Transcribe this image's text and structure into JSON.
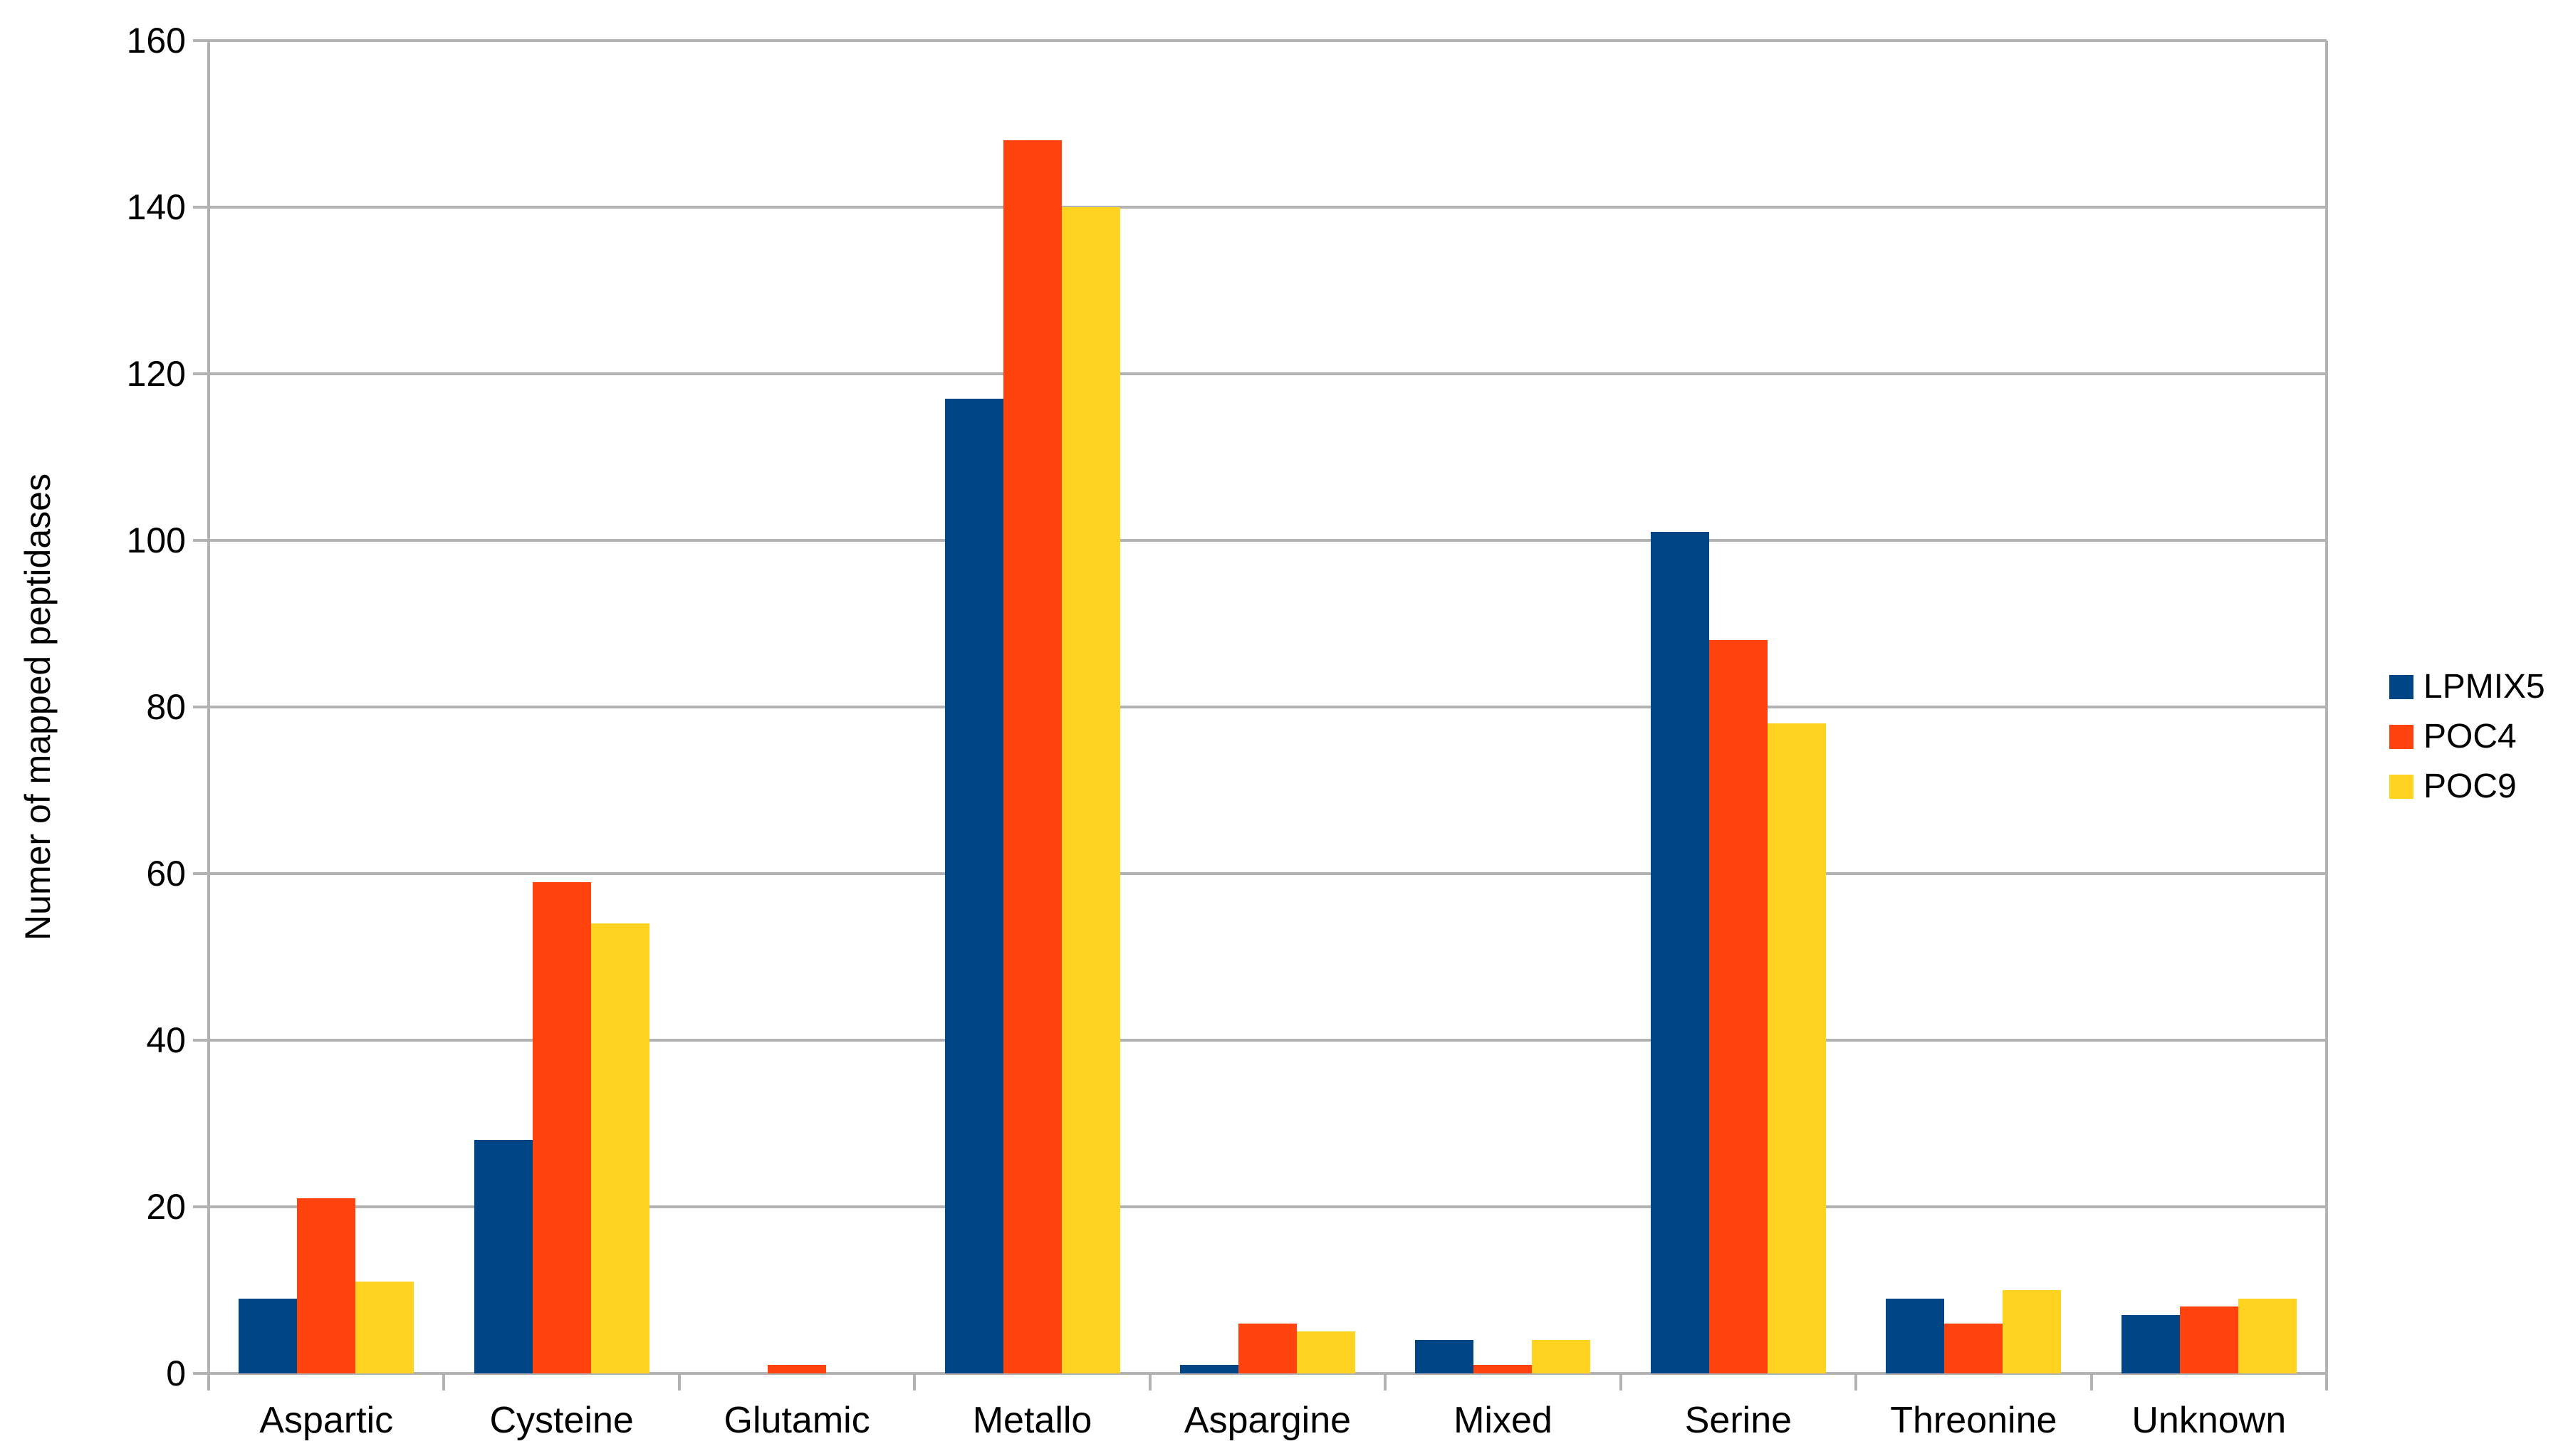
{
  "chart_data": {
    "type": "bar",
    "title": "",
    "xlabel": "",
    "ylabel": "Numer of mapped peptidases",
    "categories": [
      "Aspartic",
      "Cysteine",
      "Glutamic",
      "Metallo",
      "Aspargine",
      "Mixed",
      "Serine",
      "Threonine",
      "Unknown"
    ],
    "series": [
      {
        "name": "LPMIX5",
        "color": "#004586",
        "values": [
          9,
          28,
          0,
          117,
          1,
          4,
          101,
          9,
          7
        ]
      },
      {
        "name": "POC4",
        "color": "#FF420E",
        "values": [
          21,
          59,
          1,
          148,
          6,
          1,
          88,
          6,
          8
        ]
      },
      {
        "name": "POC9",
        "color": "#FFD320",
        "values": [
          11,
          54,
          0,
          140,
          5,
          4,
          78,
          10,
          9
        ]
      }
    ],
    "ylim": [
      0,
      160
    ],
    "yticks": [
      0,
      20,
      40,
      60,
      80,
      100,
      120,
      140,
      160
    ],
    "grid": true,
    "legend_position": "right"
  },
  "style": {
    "grid_color": "#b2b2b2",
    "axis_color": "#b2b2b2",
    "text_color": "#000000",
    "background": "#ffffff"
  }
}
